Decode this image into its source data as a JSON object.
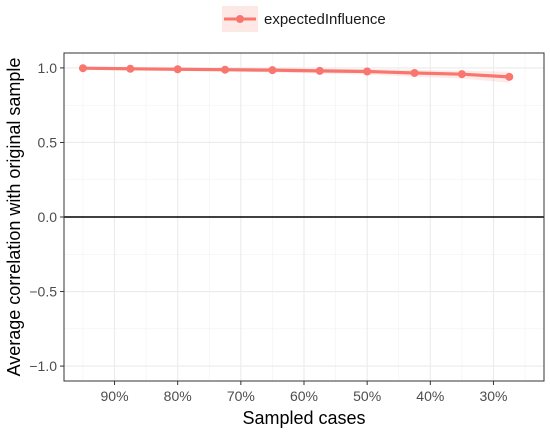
{
  "chart_data": {
    "type": "line",
    "title": "",
    "xlabel": "Sampled cases",
    "ylabel": "Average correlation with original sample",
    "legend": {
      "position": "top",
      "entries": [
        "expectedInfluence"
      ]
    },
    "x_reversed": true,
    "x_ticks": [
      {
        "label": "90%",
        "value": 0.9
      },
      {
        "label": "80%",
        "value": 0.8
      },
      {
        "label": "70%",
        "value": 0.7
      },
      {
        "label": "60%",
        "value": 0.6
      },
      {
        "label": "50%",
        "value": 0.5
      },
      {
        "label": "40%",
        "value": 0.4
      },
      {
        "label": "30%",
        "value": 0.3
      }
    ],
    "y_ticks": [
      {
        "label": "1.0",
        "value": 1.0
      },
      {
        "label": "0.5",
        "value": 0.5
      },
      {
        "label": "0.0",
        "value": 0.0
      },
      {
        "label": "−0.5",
        "value": -0.5
      },
      {
        "label": "−1.0",
        "value": -1.0
      }
    ],
    "xlim": [
      0.98,
      0.22
    ],
    "ylim": [
      -1.1,
      1.1
    ],
    "grid": true,
    "hline": 0,
    "series": [
      {
        "name": "expectedInfluence",
        "color": "#f8766d",
        "ribbon_color": "#f8766d",
        "x": [
          0.95,
          0.875,
          0.8,
          0.725,
          0.65,
          0.575,
          0.5,
          0.425,
          0.35,
          0.275
        ],
        "y": [
          0.998,
          0.994,
          0.991,
          0.988,
          0.985,
          0.98,
          0.976,
          0.966,
          0.958,
          0.94
        ],
        "lower": [
          0.99,
          0.985,
          0.98,
          0.975,
          0.97,
          0.962,
          0.955,
          0.94,
          0.928,
          0.9
        ],
        "upper": [
          1.0,
          1.0,
          1.0,
          0.998,
          0.997,
          0.995,
          0.993,
          0.988,
          0.982,
          0.975
        ]
      }
    ]
  }
}
